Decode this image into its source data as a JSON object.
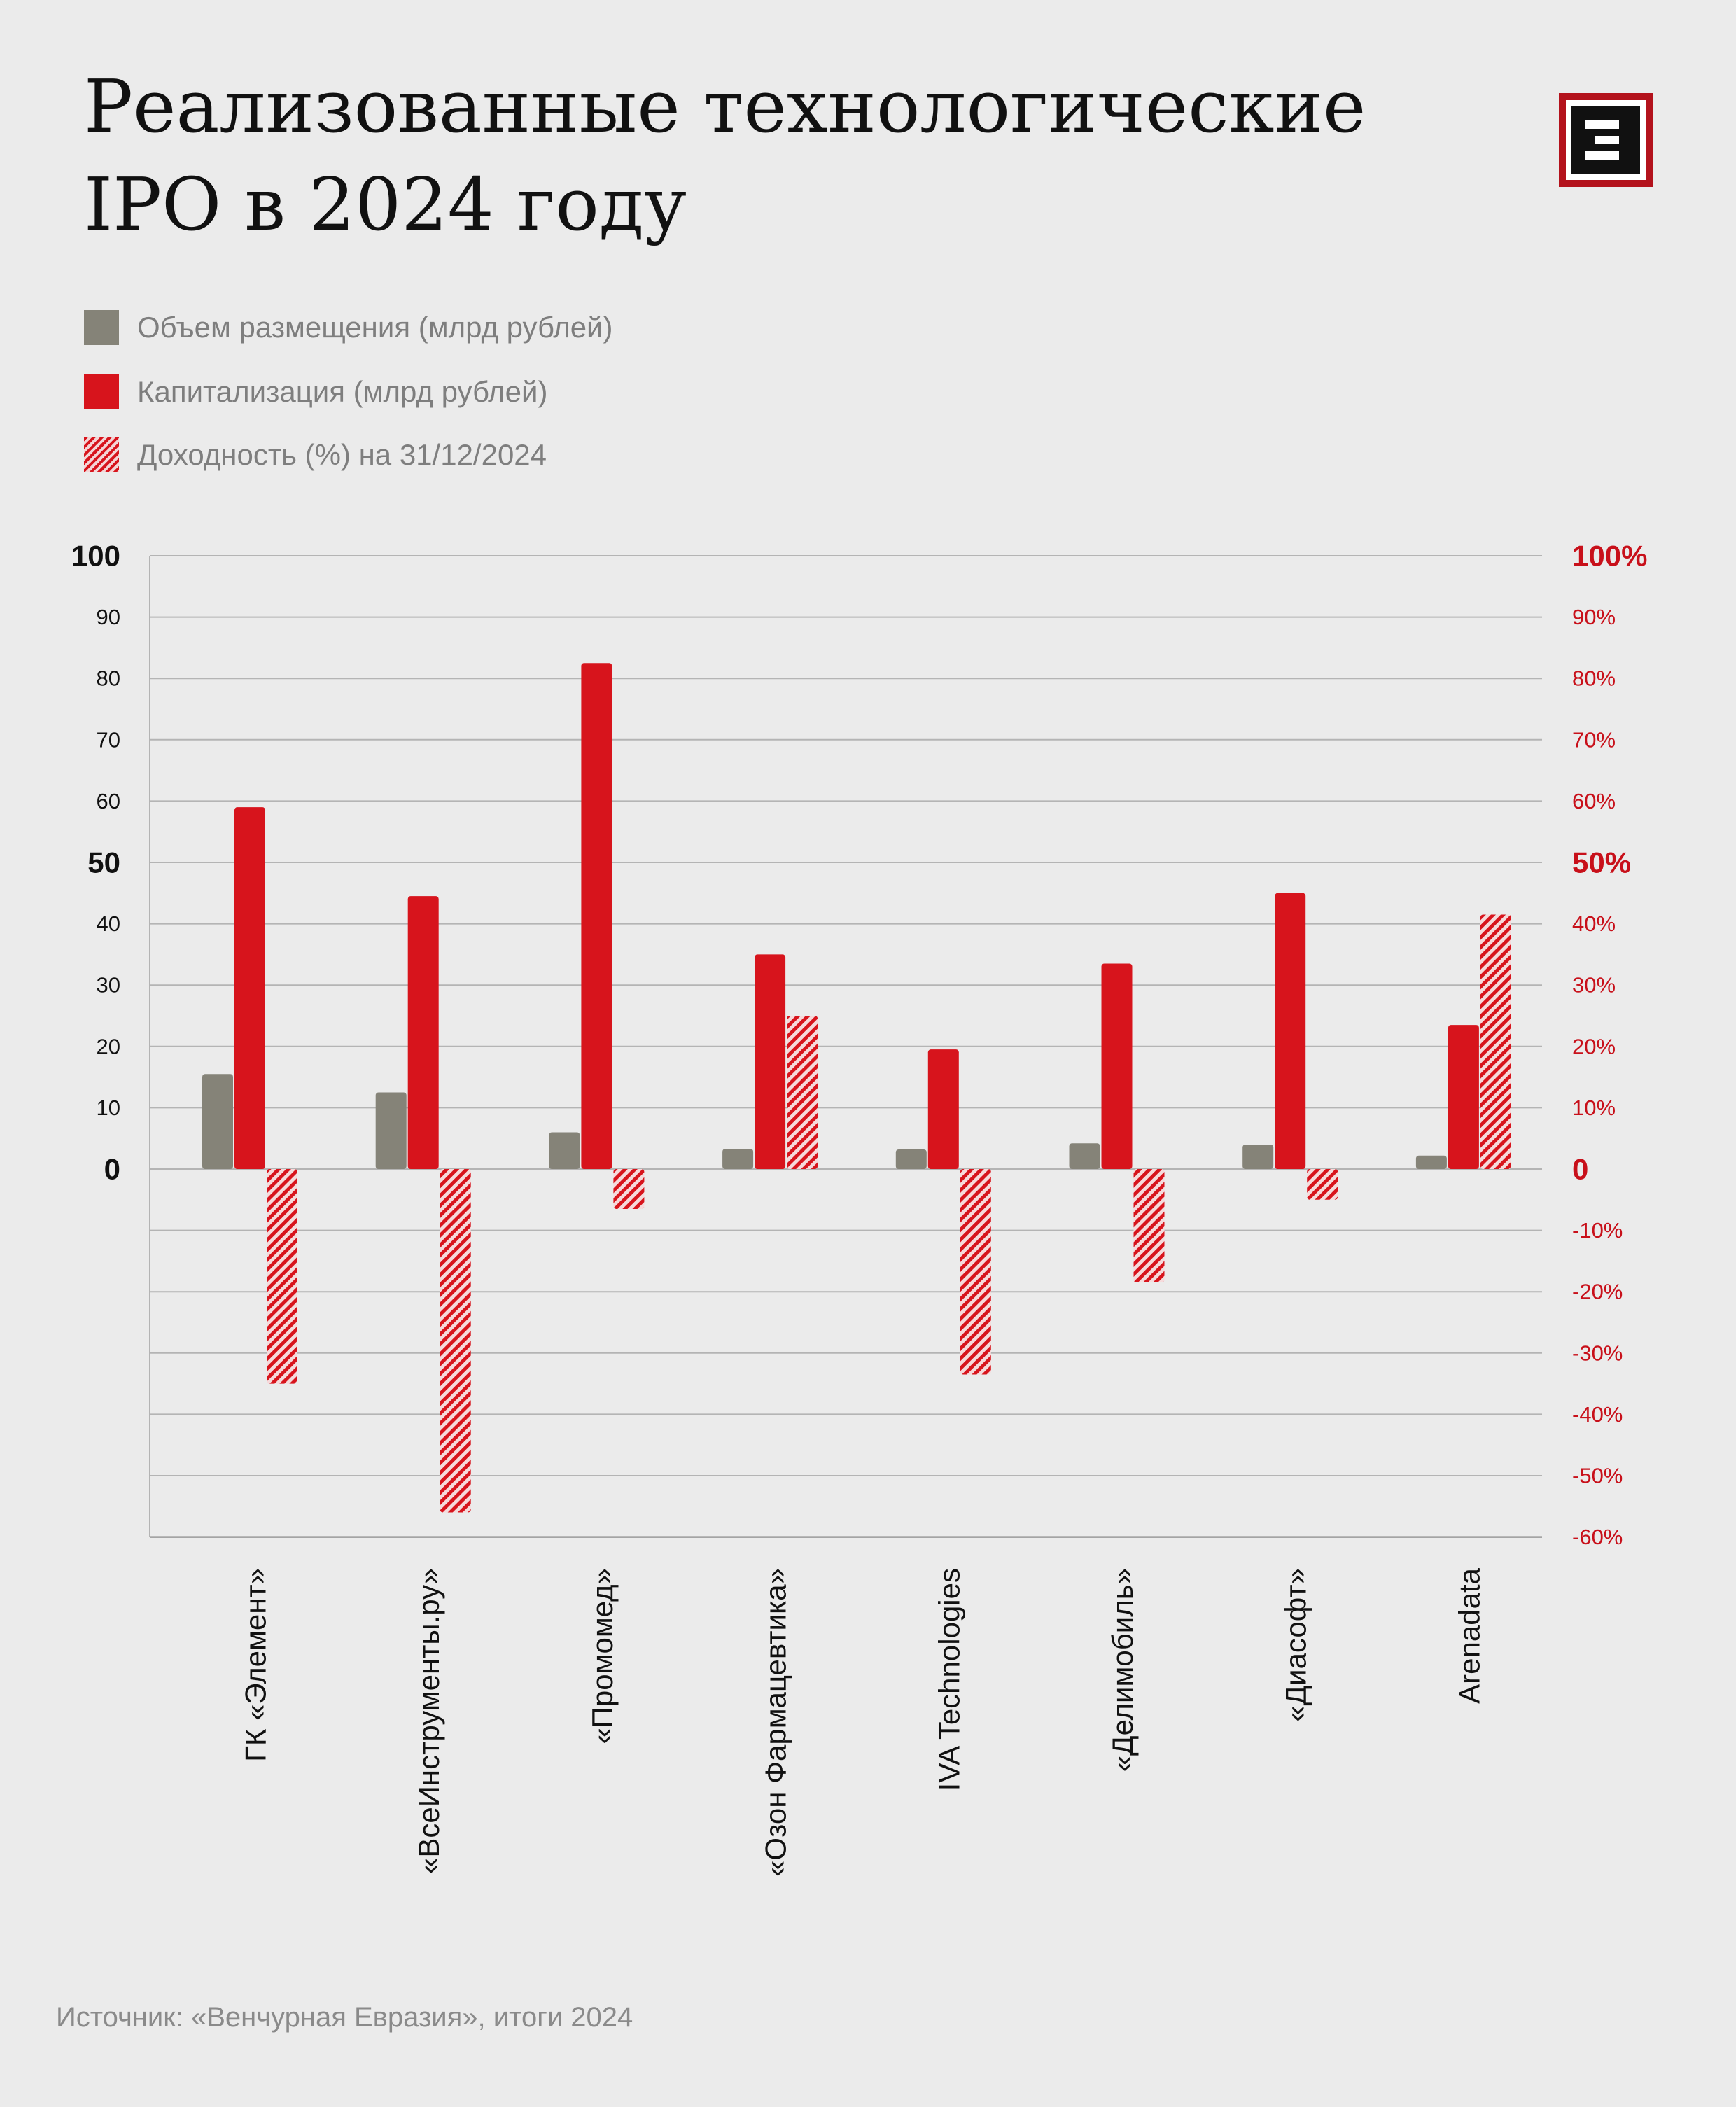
{
  "title": {
    "line1": "Реализованные технологические",
    "line2": "IPO в 2024 году"
  },
  "logo": {
    "icon": "reversed-e-logo-icon",
    "color": "#b3121c"
  },
  "legend": [
    {
      "label": "Объем размещения (млрд рублей)",
      "color": "#858378",
      "pattern": "solid"
    },
    {
      "label": "Капитализация (млрд рублей)",
      "color": "#d7141c",
      "pattern": "solid"
    },
    {
      "label": "Доходность (%) на 31/12/2024",
      "color": "#d7141c",
      "pattern": "hatched"
    }
  ],
  "chart_data": {
    "type": "bar",
    "categories": [
      "ГК «Элемент»",
      "«ВсеИнструменты.ру»",
      "«Промомед»",
      "«Озон Фармацевтика»",
      "IVA Technologies",
      "«Делимобиль»",
      "«Диасофт»",
      "Arenadata"
    ],
    "series": [
      {
        "name": "Объем размещения (млрд рублей)",
        "axis": "left",
        "color": "#858378",
        "values": [
          15.5,
          12.5,
          6,
          3.3,
          3.2,
          4.2,
          4,
          2.2
        ]
      },
      {
        "name": "Капитализация (млрд рублей)",
        "axis": "left",
        "color": "#d7141c",
        "values": [
          59,
          44.5,
          82.5,
          35,
          19.5,
          33.5,
          45,
          23.5
        ]
      },
      {
        "name": "Доходность (%) на 31/12/2024",
        "axis": "right",
        "color": "#d7141c",
        "pattern": "hatched",
        "values": [
          -35,
          -56,
          -6.5,
          25,
          -33.5,
          -18.5,
          -5,
          41.5
        ]
      }
    ],
    "y_left": {
      "range": [
        -60,
        100
      ],
      "ticks": [
        {
          "v": 100,
          "label": "100",
          "bold": true
        },
        {
          "v": 90,
          "label": "90"
        },
        {
          "v": 80,
          "label": "80"
        },
        {
          "v": 70,
          "label": "70"
        },
        {
          "v": 60,
          "label": "60"
        },
        {
          "v": 50,
          "label": "50",
          "bold": true
        },
        {
          "v": 40,
          "label": "40"
        },
        {
          "v": 30,
          "label": "30"
        },
        {
          "v": 20,
          "label": "20"
        },
        {
          "v": 10,
          "label": "10"
        },
        {
          "v": 0,
          "label": "0",
          "bold": true
        }
      ]
    },
    "y_right": {
      "range": [
        -60,
        100
      ],
      "ticks": [
        {
          "v": 100,
          "label": "100%",
          "bold": true
        },
        {
          "v": 90,
          "label": "90%"
        },
        {
          "v": 80,
          "label": "80%"
        },
        {
          "v": 70,
          "label": "70%"
        },
        {
          "v": 60,
          "label": "60%"
        },
        {
          "v": 50,
          "label": "50%",
          "bold": true
        },
        {
          "v": 40,
          "label": "40%"
        },
        {
          "v": 30,
          "label": "30%"
        },
        {
          "v": 20,
          "label": "20%"
        },
        {
          "v": 10,
          "label": "10%"
        },
        {
          "v": 0,
          "label": "0",
          "bold": true
        },
        {
          "v": -10,
          "label": "-10%"
        },
        {
          "v": -20,
          "label": "-20%"
        },
        {
          "v": -30,
          "label": "-30%"
        },
        {
          "v": -40,
          "label": "-40%"
        },
        {
          "v": -50,
          "label": "-50%"
        },
        {
          "v": -60,
          "label": "-60%"
        }
      ]
    },
    "grid": true,
    "legend_position": "top-left"
  },
  "source": "Источник: «Венчурная Евразия», итоги 2024"
}
